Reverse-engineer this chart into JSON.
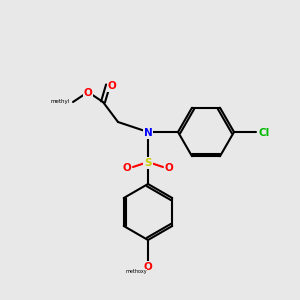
{
  "background_color": "#e8e8e8",
  "bond_color": "#000000",
  "bond_lw": 1.5,
  "atom_colors": {
    "O": "#ff0000",
    "N": "#0000ff",
    "S": "#cccc00",
    "Cl": "#00bb00",
    "C": "#000000"
  },
  "font_size": 7.5,
  "bold_font_size": 7.5
}
